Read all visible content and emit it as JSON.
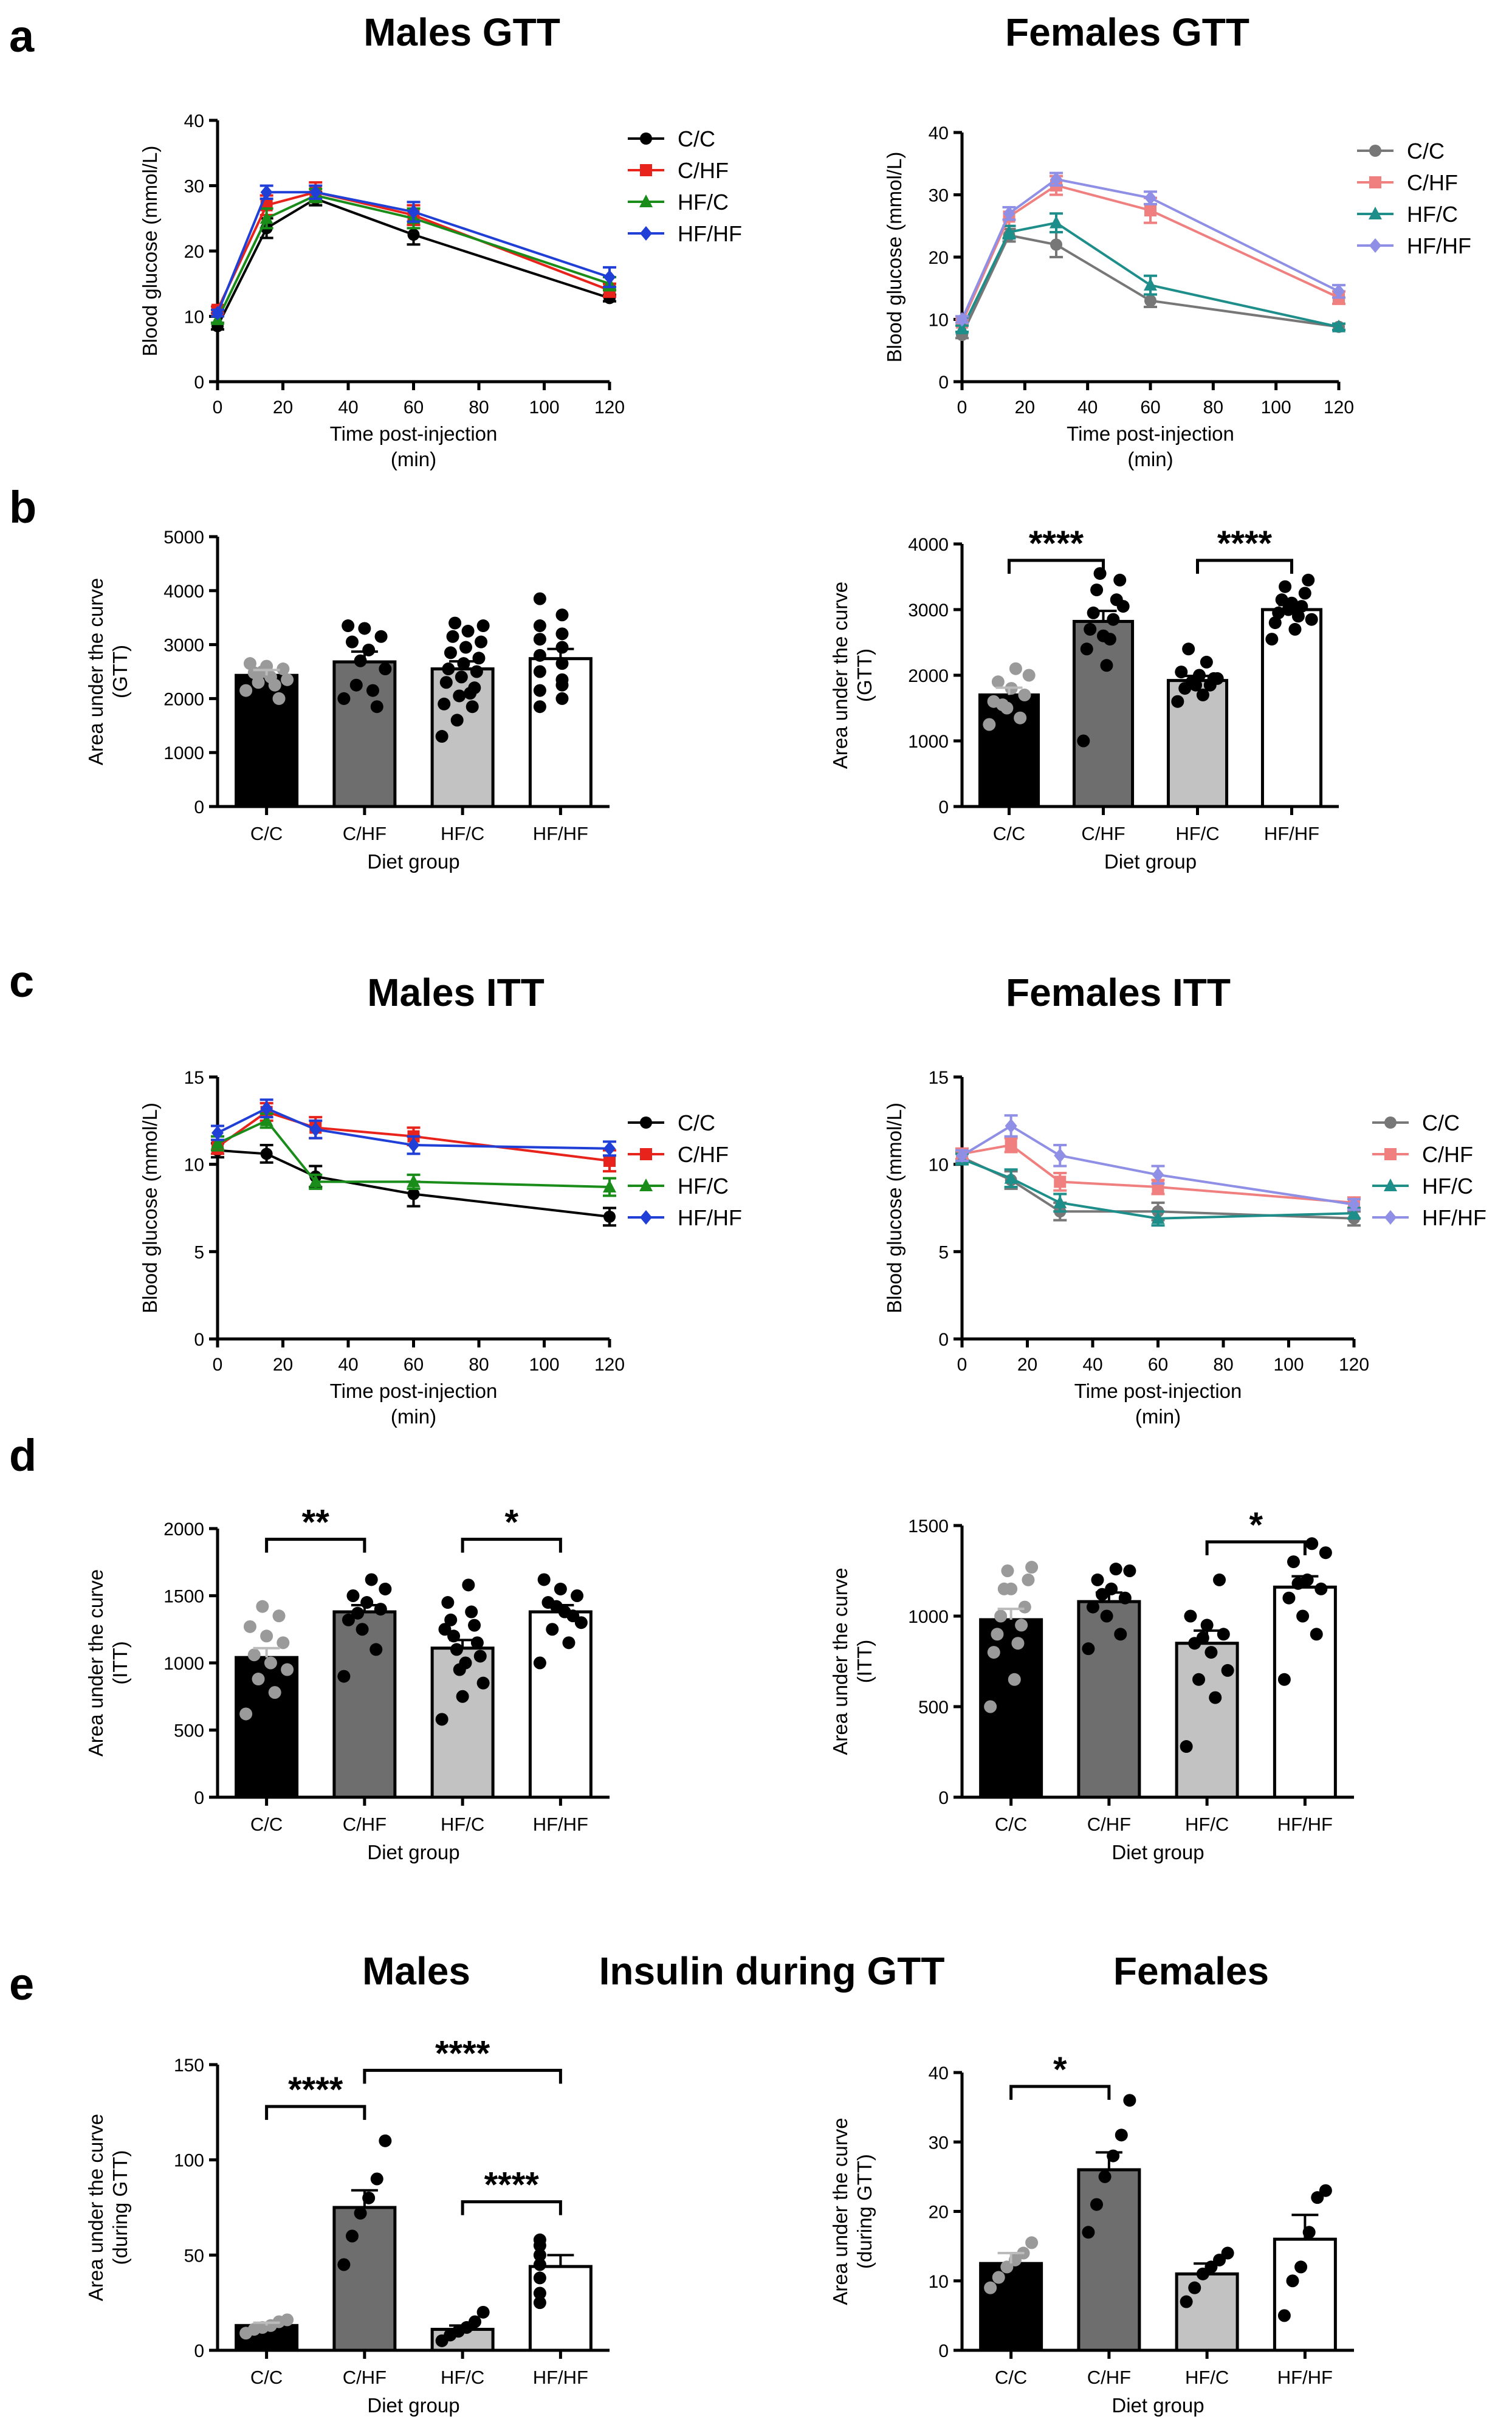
{
  "panels": [
    "a",
    "b",
    "c",
    "d",
    "e"
  ],
  "titles": {
    "males_gtt": "Males GTT",
    "females_gtt": "Females GTT",
    "males_itt": "Males ITT",
    "females_itt": "Females ITT",
    "males": "Males",
    "insulin": "Insulin during GTT",
    "females": "Females"
  },
  "colors": {
    "CC": "#000000",
    "CHF": "#e8231b",
    "HFC": "#1a8c1a",
    "HFHF": "#1f3fd6",
    "F_CC": "#777777",
    "F_CHF": "#f07f7f",
    "F_HFC": "#1e8e8a",
    "F_HFHF": "#8f8fe6",
    "bar_CC": "#000000",
    "bar_CHF": "#6e6e6e",
    "bar_HFC": "#c2c2c2",
    "bar_HFHF": "#ffffff",
    "dot_grey": "#9a9a9a",
    "dot_black": "#000000"
  },
  "chart_data": [
    {
      "id": "males_gtt",
      "type": "line",
      "xlabel": "Time post-injection\n(min)",
      "ylabel": "Blood glucose (mmol/L)",
      "xlim": [
        0,
        120
      ],
      "ylim": [
        0,
        40
      ],
      "xticks": [
        0,
        20,
        40,
        60,
        80,
        100,
        120
      ],
      "yticks": [
        0,
        10,
        20,
        30,
        40
      ],
      "legend": "top-right",
      "series": [
        {
          "name": "C/C",
          "color": "#000000",
          "marker": "circle",
          "x": [
            0,
            15,
            30,
            60,
            120
          ],
          "y": [
            8.5,
            23.5,
            28.0,
            22.5,
            12.8
          ],
          "err": [
            0.5,
            1.5,
            1.0,
            1.5,
            0.5
          ]
        },
        {
          "name": "C/HF",
          "color": "#e8231b",
          "marker": "square",
          "x": [
            0,
            15,
            30,
            60,
            120
          ],
          "y": [
            11.0,
            27.0,
            29.0,
            25.5,
            14.0
          ],
          "err": [
            0.5,
            1.5,
            1.5,
            1.5,
            1.0
          ]
        },
        {
          "name": "HF/C",
          "color": "#1a8c1a",
          "marker": "triangle",
          "x": [
            0,
            15,
            30,
            60,
            120
          ],
          "y": [
            9.5,
            25.0,
            28.5,
            25.0,
            15.0
          ],
          "err": [
            0.5,
            1.5,
            1.0,
            1.5,
            1.0
          ]
        },
        {
          "name": "HF/HF",
          "color": "#1f3fd6",
          "marker": "diamond",
          "x": [
            0,
            15,
            30,
            60,
            120
          ],
          "y": [
            10.5,
            29.0,
            29.0,
            26.0,
            16.0
          ],
          "err": [
            0.5,
            1.0,
            1.0,
            1.5,
            1.5
          ]
        }
      ]
    },
    {
      "id": "females_gtt",
      "type": "line",
      "xlabel": "Time post-injection\n(min)",
      "ylabel": "Blood glucose (mmol/L)",
      "xlim": [
        0,
        120
      ],
      "ylim": [
        0,
        40
      ],
      "xticks": [
        0,
        20,
        40,
        60,
        80,
        100,
        120
      ],
      "yticks": [
        0,
        10,
        20,
        30,
        40
      ],
      "legend": "top-right",
      "series": [
        {
          "name": "C/C",
          "color": "#777777",
          "marker": "circle",
          "x": [
            0,
            15,
            30,
            60,
            120
          ],
          "y": [
            7.5,
            23.5,
            22.0,
            13.0,
            8.8
          ],
          "err": [
            0.5,
            1.0,
            2.0,
            1.0,
            0.5
          ]
        },
        {
          "name": "C/HF",
          "color": "#f07f7f",
          "marker": "square",
          "x": [
            0,
            15,
            30,
            60,
            120
          ],
          "y": [
            9.5,
            26.5,
            31.5,
            27.5,
            13.5
          ],
          "err": [
            0.5,
            1.5,
            1.5,
            2.0,
            1.0
          ]
        },
        {
          "name": "HF/C",
          "color": "#1e8e8a",
          "marker": "triangle",
          "x": [
            0,
            15,
            30,
            60,
            120
          ],
          "y": [
            8.5,
            24.0,
            25.5,
            15.5,
            8.8
          ],
          "err": [
            0.5,
            1.0,
            1.5,
            1.5,
            0.5
          ]
        },
        {
          "name": "HF/HF",
          "color": "#8f8fe6",
          "marker": "diamond",
          "x": [
            0,
            15,
            30,
            60,
            120
          ],
          "y": [
            10.0,
            27.0,
            32.5,
            29.5,
            14.5
          ],
          "err": [
            0.5,
            1.0,
            1.0,
            1.0,
            1.0
          ]
        }
      ]
    },
    {
      "id": "males_gtt_auc",
      "type": "bar",
      "categories": [
        "C/C",
        "C/HF",
        "HF/C",
        "HF/HF"
      ],
      "values": [
        2430,
        2680,
        2550,
        2740
      ],
      "err": [
        100,
        190,
        140,
        180
      ],
      "xlabel": "Diet group",
      "ylabel": "Area under the curve\n(GTT)",
      "ylim": [
        0,
        5000
      ],
      "yticks": [
        0,
        1000,
        2000,
        3000,
        4000,
        5000
      ],
      "points": [
        [
          2150,
          2250,
          2300,
          2350,
          2400,
          2480,
          2550,
          2600,
          2650,
          2000,
          2500
        ],
        [
          2000,
          2150,
          2250,
          2550,
          2900,
          3050,
          3150,
          3300,
          3350,
          1850,
          2700
        ],
        [
          1300,
          1600,
          1850,
          1900,
          2050,
          2200,
          2300,
          2400,
          2500,
          2550,
          2650,
          2750,
          2850,
          2950,
          3050,
          3150,
          3250,
          3350,
          3400,
          2100
        ],
        [
          1850,
          2000,
          2150,
          2350,
          2500,
          2650,
          2800,
          2950,
          3100,
          3200,
          3350,
          3550,
          3850,
          2250
        ]
      ],
      "brackets": []
    },
    {
      "id": "females_gtt_auc",
      "type": "bar",
      "categories": [
        "C/C",
        "C/HF",
        "HF/C",
        "HF/HF"
      ],
      "values": [
        1700,
        2820,
        1920,
        3000
      ],
      "err": [
        110,
        160,
        70,
        70
      ],
      "xlabel": "Diet group",
      "ylabel": "Area under the curve\n(GTT)",
      "ylim": [
        0,
        4000
      ],
      "yticks": [
        0,
        1000,
        2000,
        3000,
        4000
      ],
      "points": [
        [
          1250,
          1350,
          1500,
          1600,
          1700,
          1800,
          1900,
          2000,
          2100,
          1550
        ],
        [
          1000,
          2150,
          2400,
          2550,
          2700,
          2850,
          2950,
          3150,
          3300,
          3450,
          3550,
          3050,
          2600
        ],
        [
          1600,
          1700,
          1800,
          1850,
          1900,
          1950,
          2000,
          2050,
          2200,
          2400,
          1950,
          1850
        ],
        [
          2550,
          2700,
          2800,
          2900,
          2950,
          3050,
          3150,
          3250,
          3350,
          3450,
          3000,
          2850,
          3100
        ]
      ],
      "brackets": [
        {
          "from": 0,
          "to": 1,
          "label": "****",
          "y": 3750
        },
        {
          "from": 2,
          "to": 3,
          "label": "****",
          "y": 3750
        }
      ]
    },
    {
      "id": "males_itt",
      "type": "line",
      "xlabel": "Time post-injection\n(min)",
      "ylabel": "Blood glucose (mmol/L)",
      "xlim": [
        0,
        120
      ],
      "ylim": [
        0,
        15
      ],
      "xticks": [
        0,
        20,
        40,
        60,
        80,
        100,
        120
      ],
      "yticks": [
        0,
        5,
        10,
        15
      ],
      "legend": "right",
      "series": [
        {
          "name": "C/C",
          "color": "#000000",
          "marker": "circle",
          "x": [
            0,
            15,
            30,
            60,
            120
          ],
          "y": [
            10.8,
            10.6,
            9.3,
            8.3,
            7.0
          ],
          "err": [
            0.4,
            0.5,
            0.6,
            0.7,
            0.5
          ]
        },
        {
          "name": "C/HF",
          "color": "#e8231b",
          "marker": "square",
          "x": [
            0,
            15,
            30,
            60,
            120
          ],
          "y": [
            11.0,
            13.0,
            12.1,
            11.6,
            10.2
          ],
          "err": [
            0.4,
            0.5,
            0.6,
            0.5,
            0.6
          ]
        },
        {
          "name": "HF/C",
          "color": "#1a8c1a",
          "marker": "triangle",
          "x": [
            0,
            15,
            30,
            60,
            120
          ],
          "y": [
            11.2,
            12.5,
            9.0,
            9.0,
            8.7
          ],
          "err": [
            0.4,
            0.4,
            0.4,
            0.4,
            0.5
          ]
        },
        {
          "name": "HF/HF",
          "color": "#1f3fd6",
          "marker": "diamond",
          "x": [
            0,
            15,
            30,
            60,
            120
          ],
          "y": [
            11.8,
            13.2,
            12.0,
            11.1,
            10.9
          ],
          "err": [
            0.4,
            0.5,
            0.5,
            0.5,
            0.4
          ]
        }
      ]
    },
    {
      "id": "females_itt",
      "type": "line",
      "xlabel": "Time post-injection\n(min)",
      "ylabel": "Blood glucose (mmol/L)",
      "xlim": [
        0,
        120
      ],
      "ylim": [
        0,
        15
      ],
      "xticks": [
        0,
        20,
        40,
        60,
        80,
        100,
        120
      ],
      "yticks": [
        0,
        5,
        10,
        15
      ],
      "legend": "right",
      "series": [
        {
          "name": "C/C",
          "color": "#777777",
          "marker": "circle",
          "x": [
            0,
            15,
            30,
            60,
            120
          ],
          "y": [
            10.4,
            9.1,
            7.3,
            7.3,
            6.9
          ],
          "err": [
            0.3,
            0.5,
            0.5,
            0.5,
            0.4
          ]
        },
        {
          "name": "C/HF",
          "color": "#f07f7f",
          "marker": "square",
          "x": [
            0,
            15,
            30,
            60,
            120
          ],
          "y": [
            10.6,
            11.1,
            9.0,
            8.7,
            7.8
          ],
          "err": [
            0.3,
            0.4,
            0.5,
            0.4,
            0.3
          ]
        },
        {
          "name": "HF/C",
          "color": "#1e8e8a",
          "marker": "triangle",
          "x": [
            0,
            15,
            30,
            60,
            120
          ],
          "y": [
            10.3,
            9.2,
            7.8,
            6.9,
            7.2
          ],
          "err": [
            0.3,
            0.5,
            0.5,
            0.4,
            0.3
          ]
        },
        {
          "name": "HF/HF",
          "color": "#8f8fe6",
          "marker": "diamond",
          "x": [
            0,
            15,
            30,
            60,
            120
          ],
          "y": [
            10.5,
            12.2,
            10.5,
            9.4,
            7.7
          ],
          "err": [
            0.3,
            0.6,
            0.6,
            0.5,
            0.3
          ]
        }
      ]
    },
    {
      "id": "males_itt_auc",
      "type": "bar",
      "categories": [
        "C/C",
        "C/HF",
        "HF/C",
        "HF/HF"
      ],
      "values": [
        1040,
        1380,
        1110,
        1380
      ],
      "err": [
        70,
        50,
        60,
        50
      ],
      "xlabel": "Diet group",
      "ylabel": "Area under the curve\n(ITT)",
      "ylim": [
        0,
        2000
      ],
      "yticks": [
        0,
        500,
        1000,
        1500,
        2000
      ],
      "points": [
        [
          620,
          780,
          880,
          950,
          1000,
          1060,
          1150,
          1200,
          1270,
          1350,
          1420
        ],
        [
          900,
          1100,
          1250,
          1320,
          1400,
          1450,
          1500,
          1550,
          1620,
          1370
        ],
        [
          580,
          750,
          850,
          950,
          1050,
          1100,
          1150,
          1200,
          1280,
          1320,
          1380,
          1450,
          1580,
          1250,
          1000
        ],
        [
          1000,
          1150,
          1250,
          1300,
          1380,
          1450,
          1500,
          1550,
          1620,
          1350,
          1420
        ]
      ],
      "brackets": [
        {
          "from": 0,
          "to": 1,
          "label": "**",
          "y": 1920
        },
        {
          "from": 2,
          "to": 3,
          "label": "*",
          "y": 1920
        }
      ]
    },
    {
      "id": "females_itt_auc",
      "type": "bar",
      "categories": [
        "C/C",
        "C/HF",
        "HF/C",
        "HF/HF"
      ],
      "values": [
        980,
        1080,
        850,
        1160
      ],
      "err": [
        60,
        50,
        70,
        60
      ],
      "xlabel": "Diet group",
      "ylabel": "Area under the curve\n(ITT)",
      "ylim": [
        0,
        1500
      ],
      "yticks": [
        0,
        500,
        1000,
        1500
      ],
      "points": [
        [
          500,
          650,
          800,
          850,
          900,
          950,
          1000,
          1050,
          1150,
          1200,
          1250,
          1270,
          1150
        ],
        [
          820,
          900,
          1000,
          1050,
          1100,
          1150,
          1200,
          1250,
          1260,
          1120
        ],
        [
          280,
          550,
          650,
          700,
          800,
          850,
          900,
          950,
          1000,
          1200,
          880
        ],
        [
          650,
          900,
          1000,
          1100,
          1150,
          1200,
          1300,
          1350,
          1400,
          1180
        ]
      ],
      "brackets": [
        {
          "from": 2,
          "to": 3,
          "label": "*",
          "y": 1410
        }
      ]
    },
    {
      "id": "males_insulin_auc",
      "type": "bar",
      "categories": [
        "C/C",
        "C/HF",
        "HF/C",
        "HF/HF"
      ],
      "values": [
        13,
        75,
        11,
        44
      ],
      "err": [
        1.5,
        9,
        2,
        6
      ],
      "xlabel": "Diet group",
      "ylabel": "Area under the curve\n(during GTT)",
      "ylim": [
        0,
        150
      ],
      "yticks": [
        0,
        50,
        100,
        150
      ],
      "points": [
        [
          9,
          11,
          12,
          13,
          15,
          16
        ],
        [
          45,
          60,
          72,
          80,
          90,
          110
        ],
        [
          5,
          8,
          10,
          12,
          15,
          20
        ],
        [
          25,
          30,
          38,
          45,
          50,
          55,
          58
        ]
      ],
      "brackets": [
        {
          "from": 0,
          "to": 1,
          "label": "****",
          "y": 128
        },
        {
          "from": 1,
          "to": 3,
          "label": "****",
          "y": 147
        },
        {
          "from": 2,
          "to": 3,
          "label": "****",
          "y": 78
        }
      ]
    },
    {
      "id": "females_insulin_auc",
      "type": "bar",
      "categories": [
        "C/C",
        "C/HF",
        "HF/C",
        "HF/HF"
      ],
      "values": [
        12.5,
        26,
        11,
        16
      ],
      "err": [
        1.5,
        2.5,
        1.5,
        3.5
      ],
      "xlabel": "Diet group",
      "ylabel": "Area under the curve\n(during GTT)",
      "ylim": [
        0,
        40
      ],
      "yticks": [
        0,
        10,
        20,
        30,
        40
      ],
      "points": [
        [
          9,
          10.5,
          12,
          13,
          14,
          15.5
        ],
        [
          17,
          21,
          25,
          28,
          31,
          36
        ],
        [
          7,
          9,
          11,
          12,
          13,
          14
        ],
        [
          5,
          10,
          12,
          17,
          22,
          23
        ]
      ],
      "brackets": [
        {
          "from": 0,
          "to": 1,
          "label": "*",
          "y": 38
        }
      ]
    }
  ]
}
